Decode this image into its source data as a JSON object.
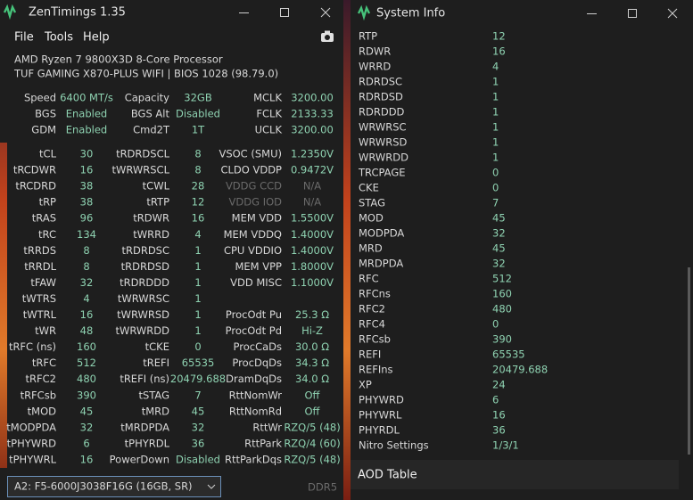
{
  "left_window": {
    "title": "ZenTimings 1.35",
    "menu": [
      "File",
      "Tools",
      "Help"
    ],
    "cpu": "AMD Ryzen 7 9800X3D 8-Core Processor",
    "board": "TUF GAMING X870-PLUS WIFI | BIOS 1028 (98.79.0)",
    "summary": [
      [
        [
          "Speed",
          "6400 MT/s"
        ],
        [
          "Capacity",
          "32GB"
        ],
        [
          "MCLK",
          "3200.00"
        ]
      ],
      [
        [
          "BGS",
          "Enabled"
        ],
        [
          "BGS Alt",
          "Disabled"
        ],
        [
          "FCLK",
          "2133.33"
        ]
      ],
      [
        [
          "GDM",
          "Enabled"
        ],
        [
          "Cmd2T",
          "1T"
        ],
        [
          "UCLK",
          "3200.00"
        ]
      ]
    ],
    "timings": [
      [
        [
          "tCL",
          "30"
        ],
        [
          "tRDRDSCL",
          "8"
        ],
        [
          "VSOC (SMU)",
          "1.2350V"
        ]
      ],
      [
        [
          "tRCDWR",
          "16"
        ],
        [
          "tWRWRSCL",
          "8"
        ],
        [
          "CLDO VDDP",
          "0.9472V"
        ]
      ],
      [
        [
          "tRCDRD",
          "38"
        ],
        [
          "tCWL",
          "28"
        ],
        [
          "VDDG CCD",
          "N/A"
        ]
      ],
      [
        [
          "tRP",
          "38"
        ],
        [
          "tRTP",
          "12"
        ],
        [
          "VDDG IOD",
          "N/A"
        ]
      ],
      [
        [
          "tRAS",
          "96"
        ],
        [
          "tRDWR",
          "16"
        ],
        [
          "MEM VDD",
          "1.5500V"
        ]
      ],
      [
        [
          "tRC",
          "134"
        ],
        [
          "tWRRD",
          "4"
        ],
        [
          "MEM VDDQ",
          "1.4000V"
        ]
      ],
      [
        [
          "tRRDS",
          "8"
        ],
        [
          "tRDRDSC",
          "1"
        ],
        [
          "CPU VDDIO",
          "1.4000V"
        ]
      ],
      [
        [
          "tRRDL",
          "8"
        ],
        [
          "tRDRDSD",
          "1"
        ],
        [
          "MEM VPP",
          "1.8000V"
        ]
      ],
      [
        [
          "tFAW",
          "32"
        ],
        [
          "tRDRDDD",
          "1"
        ],
        [
          "VDD MISC",
          "1.1000V"
        ]
      ],
      [
        [
          "tWTRS",
          "4"
        ],
        [
          "tWRWRSC",
          "1"
        ]
      ],
      [
        [
          "tWTRL",
          "16"
        ],
        [
          "tWRWRSD",
          "1"
        ],
        [
          "ProcOdt Pu",
          "25.3 Ω"
        ]
      ],
      [
        [
          "tWR",
          "48"
        ],
        [
          "tWRWRDD",
          "1"
        ],
        [
          "ProcOdt Pd",
          "Hi-Z"
        ]
      ],
      [
        [
          "tRFC (ns)",
          "160"
        ],
        [
          "tCKE",
          "0"
        ],
        [
          "ProcCaDs",
          "30.0 Ω"
        ]
      ],
      [
        [
          "tRFC",
          "512"
        ],
        [
          "tREFI",
          "65535"
        ],
        [
          "ProcDqDs",
          "34.3 Ω"
        ]
      ],
      [
        [
          "tRFC2",
          "480"
        ],
        [
          "tREFI (ns)",
          "20479.688"
        ],
        [
          "DramDqDs",
          "34.0 Ω"
        ]
      ],
      [
        [
          "tRFCsb",
          "390"
        ],
        [
          "tSTAG",
          "7"
        ],
        [
          "RttNomWr",
          "Off"
        ]
      ],
      [
        [
          "tMOD",
          "45"
        ],
        [
          "tMRD",
          "45"
        ],
        [
          "RttNomRd",
          "Off"
        ]
      ],
      [
        [
          "tMODPDA",
          "32"
        ],
        [
          "tMRDPDA",
          "32"
        ],
        [
          "RttWr",
          "RZQ/5 (48)"
        ]
      ],
      [
        [
          "tPHYWRD",
          "6"
        ],
        [
          "tPHYRDL",
          "36"
        ],
        [
          "RttPark",
          "RZQ/4 (60)"
        ]
      ],
      [
        [
          "tPHYWRL",
          "16"
        ],
        [
          "PowerDown",
          "Disabled"
        ],
        [
          "RttParkDqs",
          "RZQ/5 (48)"
        ]
      ]
    ],
    "module": "A2: F5-6000J3038F16G (16GB, SR)",
    "memory_type": "DDR5"
  },
  "right_window": {
    "title": "System Info",
    "rows": [
      [
        "RTP",
        "12"
      ],
      [
        "RDWR",
        "16"
      ],
      [
        "WRRD",
        "4"
      ],
      [
        "RDRDSC",
        "1"
      ],
      [
        "RDRDSD",
        "1"
      ],
      [
        "RDRDDD",
        "1"
      ],
      [
        "WRWRSC",
        "1"
      ],
      [
        "WRWRSD",
        "1"
      ],
      [
        "WRWRDD",
        "1"
      ],
      [
        "TRCPAGE",
        "0"
      ],
      [
        "CKE",
        "0"
      ],
      [
        "STAG",
        "7"
      ],
      [
        "MOD",
        "45"
      ],
      [
        "MODPDA",
        "32"
      ],
      [
        "MRD",
        "45"
      ],
      [
        "MRDPDA",
        "32"
      ],
      [
        "RFC",
        "512"
      ],
      [
        "RFCns",
        "160"
      ],
      [
        "RFC2",
        "480"
      ],
      [
        "RFC4",
        "0"
      ],
      [
        "RFCsb",
        "390"
      ],
      [
        "REFI",
        "65535"
      ],
      [
        "REFIns",
        "20479.688"
      ],
      [
        "XP",
        "24"
      ],
      [
        "PHYWRD",
        "6"
      ],
      [
        "PHYWRL",
        "16"
      ],
      [
        "PHYRDL",
        "36"
      ],
      [
        "Nitro Settings",
        "1/3/1"
      ]
    ],
    "footer": "AOD Table"
  }
}
